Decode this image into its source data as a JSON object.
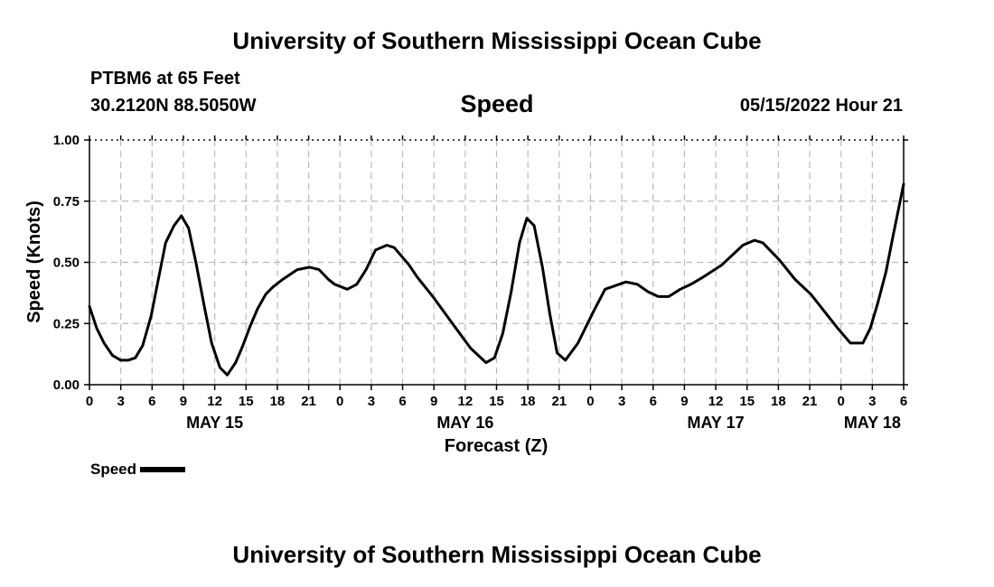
{
  "header": {
    "title": "University of Southern Mississippi Ocean Cube",
    "station": "PTBM6 at 65 Feet",
    "coords": "30.2120N  88.5050W",
    "variable": "Speed",
    "datetime": "05/15/2022 Hour 21"
  },
  "footer": {
    "title": "University of Southern Mississippi Ocean Cube"
  },
  "legend": {
    "label": "Speed"
  },
  "colors": {
    "line": "#000000",
    "grid": "#bbbbbb",
    "background": "#ffffff"
  },
  "chart_data": {
    "type": "line",
    "title": "Speed",
    "xlabel": "Forecast (Z)",
    "ylabel": "Speed (Knots)",
    "xlim": [
      0,
      78
    ],
    "ylim": [
      0,
      1
    ],
    "grid": true,
    "x_unit": "hours from May 15 00Z",
    "x_ticks": [
      0,
      3,
      6,
      9,
      12,
      15,
      18,
      21,
      24,
      27,
      30,
      33,
      36,
      39,
      42,
      45,
      48,
      51,
      54,
      57,
      60,
      63,
      66,
      69,
      72,
      75,
      78
    ],
    "x_tick_labels": [
      "0",
      "3",
      "6",
      "9",
      "12",
      "15",
      "18",
      "21",
      "0",
      "3",
      "6",
      "9",
      "12",
      "15",
      "18",
      "21",
      "0",
      "3",
      "6",
      "9",
      "12",
      "15",
      "18",
      "21",
      "0",
      "3",
      "6"
    ],
    "y_ticks": [
      0,
      0.25,
      0.5,
      0.75,
      1.0
    ],
    "y_tick_labels": [
      "0.00",
      "0.25",
      "0.50",
      "0.75",
      "1.00"
    ],
    "day_labels": [
      {
        "x": 12,
        "label": "MAY 15"
      },
      {
        "x": 36,
        "label": "MAY 16"
      },
      {
        "x": 60,
        "label": "MAY 17"
      },
      {
        "x": 75,
        "label": "MAY 18"
      }
    ],
    "series": [
      {
        "name": "Speed",
        "x": [
          0,
          0.7,
          1.4,
          2.2,
          3.0,
          3.7,
          4.4,
          5.1,
          5.9,
          6.6,
          7.3,
          8.1,
          8.8,
          9.5,
          10.2,
          11.0,
          11.7,
          12.5,
          13.2,
          14.0,
          14.7,
          15.4,
          16.1,
          16.9,
          17.6,
          18.5,
          19.9,
          21.1,
          22.0,
          22.9,
          23.5,
          24.7,
          25.6,
          26.5,
          27.4,
          28.5,
          29.2,
          30.6,
          31.4,
          32.9,
          34.6,
          36.5,
          38.0,
          38.8,
          39.6,
          40.4,
          41.2,
          41.9,
          42.6,
          43.4,
          44.1,
          44.8,
          45.6,
          46.8,
          48.3,
          49.4,
          51.4,
          52.5,
          53.5,
          54.5,
          55.5,
          56.6,
          57.6,
          58.8,
          60.6,
          62.6,
          63.7,
          64.5,
          66.1,
          67.6,
          69.1,
          70.4,
          71.7,
          72.9,
          74.1,
          74.8,
          75.5,
          76.3,
          77.0,
          78.0
        ],
        "values": [
          0.32,
          0.23,
          0.17,
          0.12,
          0.1,
          0.1,
          0.11,
          0.16,
          0.28,
          0.43,
          0.58,
          0.65,
          0.69,
          0.64,
          0.5,
          0.32,
          0.17,
          0.07,
          0.04,
          0.09,
          0.16,
          0.24,
          0.31,
          0.37,
          0.4,
          0.43,
          0.47,
          0.48,
          0.47,
          0.43,
          0.41,
          0.39,
          0.41,
          0.47,
          0.55,
          0.57,
          0.56,
          0.49,
          0.44,
          0.36,
          0.26,
          0.15,
          0.09,
          0.11,
          0.21,
          0.38,
          0.58,
          0.68,
          0.65,
          0.48,
          0.29,
          0.13,
          0.1,
          0.17,
          0.3,
          0.39,
          0.42,
          0.41,
          0.38,
          0.36,
          0.36,
          0.39,
          0.41,
          0.44,
          0.49,
          0.57,
          0.59,
          0.58,
          0.51,
          0.43,
          0.37,
          0.3,
          0.23,
          0.17,
          0.17,
          0.23,
          0.33,
          0.46,
          0.61,
          0.82
        ]
      }
    ]
  }
}
